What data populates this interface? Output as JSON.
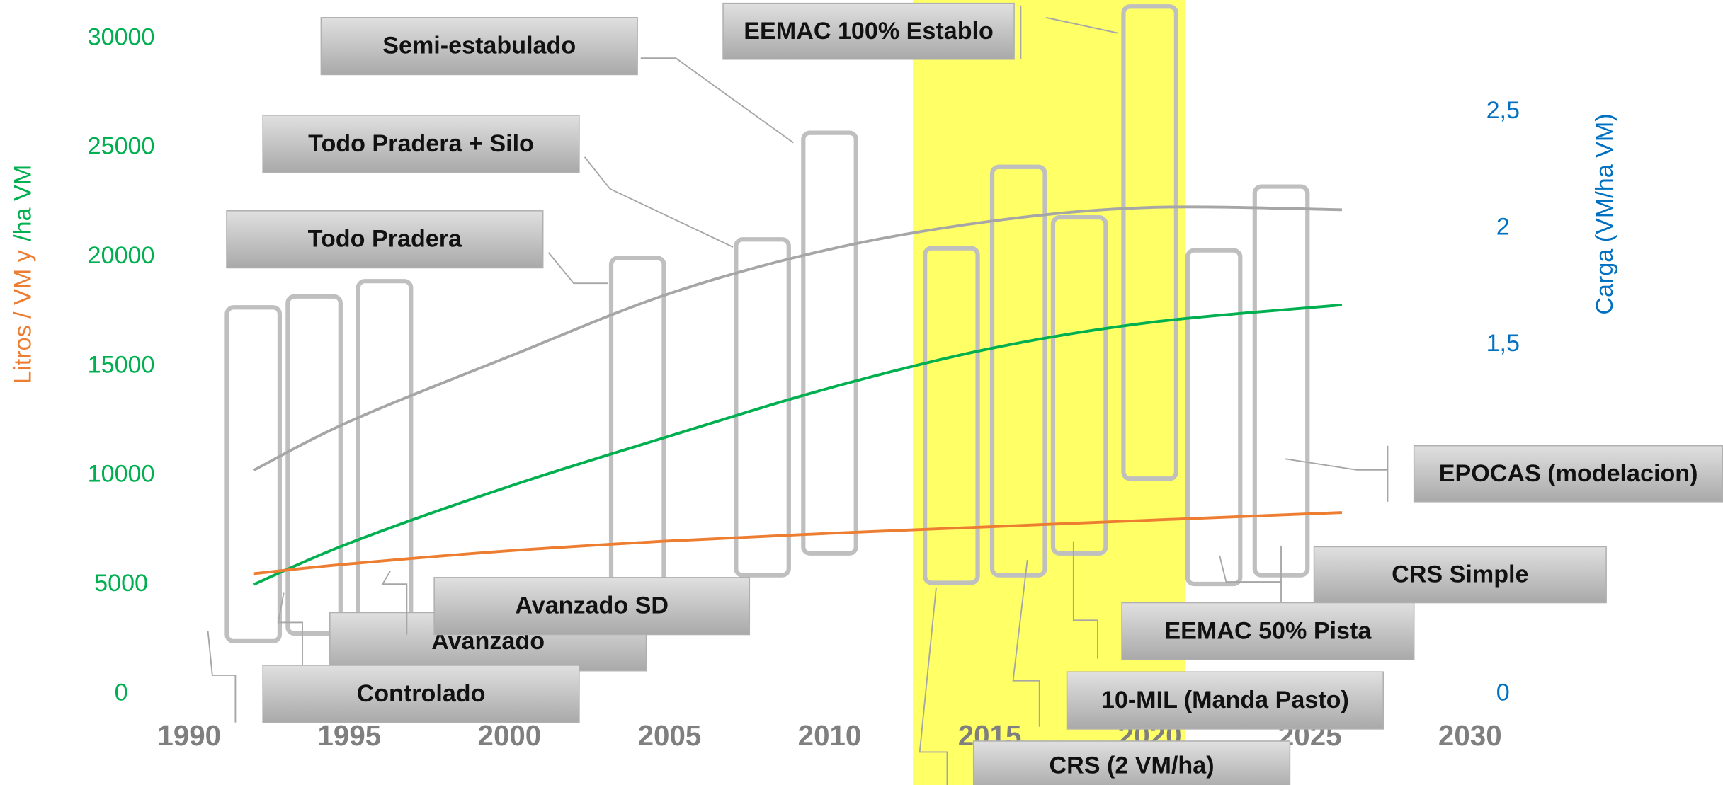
{
  "chart_data": {
    "type": "line",
    "ylabel": [
      "Litros / VM y",
      "/ha VM"
    ],
    "y2label": "Carga (VM/ha VM)",
    "x": [
      1992,
      1995,
      2000,
      2005,
      2010,
      2015,
      2020,
      2026
    ],
    "series": [
      {
        "color": "#a6a6a6",
        "axis": "y2",
        "values": [
          0.96,
          1.17,
          1.45,
          1.72,
          1.91,
          2.03,
          2.09,
          2.08
        ]
      },
      {
        "color": "#00b050",
        "values": [
          5000,
          6900,
          9500,
          11800,
          14000,
          15800,
          17000,
          17800
        ]
      },
      {
        "color": "#ed7d31",
        "values": [
          5500,
          5950,
          6550,
          7000,
          7350,
          7650,
          7950,
          8300
        ]
      }
    ],
    "ranges": [
      {
        "x": 1992.0,
        "low": 2410,
        "high": 17690
      },
      {
        "x": 1993.9,
        "low": 2760,
        "high": 18190
      },
      {
        "x": 1996.1,
        "low": 3520,
        "high": 18890
      },
      {
        "x": 2004.0,
        "low": 4620,
        "high": 19950
      },
      {
        "x": 2007.9,
        "low": 5430,
        "high": 20800
      },
      {
        "x": 2010.0,
        "low": 6430,
        "high": 25680
      },
      {
        "x": 2013.8,
        "low": 5080,
        "high": 20400
      },
      {
        "x": 2015.9,
        "low": 5430,
        "high": 24120
      },
      {
        "x": 2017.8,
        "low": 6430,
        "high": 21810
      },
      {
        "x": 2020.0,
        "low": 9850,
        "high": 31460
      },
      {
        "x": 2022.0,
        "low": 5030,
        "high": 20300
      },
      {
        "x": 2024.1,
        "low": 5430,
        "high": 23220
      }
    ],
    "range_color": "#bfbfbf",
    "highlight": [
      2012.6,
      2021.1
    ],
    "highlight_color": "#ffff66",
    "xlim": [
      1990,
      2030
    ],
    "xticks": [
      1990,
      1995,
      2000,
      2005,
      2010,
      2015,
      2020,
      2025,
      2030
    ],
    "ylim": [
      0,
      30000
    ],
    "yticks": [
      0,
      5000,
      10000,
      15000,
      20000,
      25000,
      30000
    ],
    "y2lim": [
      0,
      2.816
    ],
    "y2ticks": [
      0,
      {
        "value": 1.5,
        "label": "1,5"
      },
      2,
      {
        "value": 2.5,
        "label": "2,5"
      }
    ],
    "annotations": [
      "Semi-estabulado",
      "EEMAC 100% Establo",
      "Todo Pradera + Silo",
      "Todo Pradera",
      "EPOCAS (modelacion)",
      "CRS Simple",
      "Avanzado",
      "Avanzado SD",
      "EEMAC 50% Pista",
      "Controlado",
      "10-MIL (Manda Pasto)",
      "CRS (2 VM/ha)"
    ]
  }
}
